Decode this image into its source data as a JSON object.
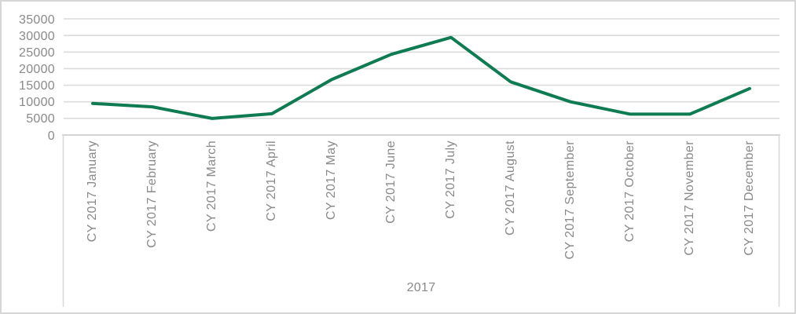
{
  "chart": {
    "background_color": "#FFFFFF",
    "frame_border_color": "#D7D7D7",
    "series_line_color": "#0F7B52",
    "gridline_color": "#DCDCDC",
    "axis_line_color": "#C6C6C6",
    "separator_line_color": "#D9D9D9",
    "label_color": "#8A8A8A"
  },
  "chart_data": {
    "type": "line",
    "title": "",
    "categories": [
      "CY 2017 January",
      "CY 2017 February",
      "CY 2017 March",
      "CY 2017 April",
      "CY 2017 May",
      "CY 2017 June",
      "CY 2017 July",
      "CY 2017 August",
      "CY 2017 September",
      "CY 2017 October",
      "CY 2017 November",
      "CY 2017 December"
    ],
    "values": [
      9500,
      8500,
      5000,
      6400,
      16700,
      24300,
      29400,
      16000,
      10000,
      6300,
      6300,
      14000
    ],
    "x_group_label": "2017",
    "xlabel": "",
    "ylabel": "",
    "yticks": [
      0,
      5000,
      10000,
      15000,
      20000,
      25000,
      30000,
      35000
    ],
    "ylim": [
      0,
      35000
    ],
    "grid": "horizontal",
    "legend": "none",
    "x_label_rotation_degrees": 90
  }
}
